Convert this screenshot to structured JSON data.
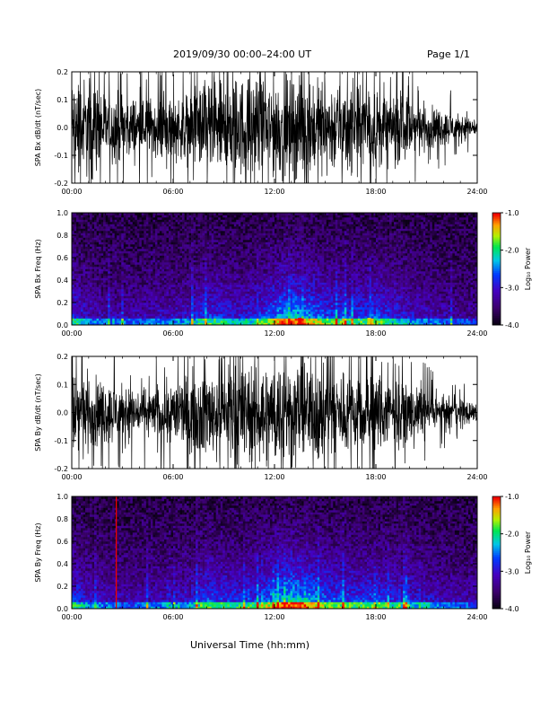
{
  "header": {
    "title": "2019/09/30  00:00–24:00 UT",
    "page": "Page 1/1"
  },
  "footer": {
    "xlabel": "Universal Time (hh:mm)"
  },
  "chart_data": [
    {
      "type": "line",
      "panel": "SPA Bx dB/dt",
      "ylabel": "SPA Bx dB/dt (nT/sec)",
      "xlabel": "",
      "x_unit": "hours UT",
      "xlim": [
        0,
        24
      ],
      "ylim": [
        -0.2,
        0.2
      ],
      "x_ticks": [
        "00:00",
        "06:00",
        "12:00",
        "18:00",
        "24:00"
      ],
      "y_ticks": [
        "-0.2",
        "-0.1",
        "0.0",
        "0.1",
        "0.2"
      ],
      "series": [
        {
          "x": [
            0,
            1,
            2,
            3,
            4,
            5,
            6,
            7,
            8,
            9,
            10,
            11,
            12,
            13,
            14,
            15,
            16,
            17,
            18,
            19,
            20,
            21,
            22,
            23,
            24
          ],
          "amplitude": [
            0.2,
            0.2,
            0.15,
            0.13,
            0.12,
            0.12,
            0.12,
            0.14,
            0.2,
            0.2,
            0.2,
            0.19,
            0.2,
            0.2,
            0.2,
            0.19,
            0.18,
            0.17,
            0.16,
            0.15,
            0.12,
            0.09,
            0.07,
            0.05,
            0.04
          ]
        }
      ],
      "grid": false
    },
    {
      "type": "heatmap",
      "panel": "SPA Bx Freq",
      "ylabel": "SPA Bx Freq (Hz)",
      "xlim": [
        0,
        24
      ],
      "ylim": [
        0.0,
        1.0
      ],
      "x_ticks": [
        "00:00",
        "06:00",
        "12:00",
        "18:00",
        "24:00"
      ],
      "y_ticks": [
        "0.0",
        "0.2",
        "0.4",
        "0.6",
        "0.8",
        "1.0"
      ],
      "colorbar": {
        "label": "Log₁₀ Power",
        "range": [
          -4.0,
          -1.0
        ],
        "ticks": [
          "-1.0",
          "-2.0",
          "-3.0",
          "-4.0"
        ]
      },
      "activity_by_hour": [
        0.55,
        0.35,
        0.3,
        0.3,
        0.3,
        0.35,
        0.35,
        0.4,
        0.55,
        0.5,
        0.45,
        0.5,
        0.7,
        0.85,
        0.75,
        0.6,
        0.55,
        0.55,
        0.6,
        0.5,
        0.4,
        0.35,
        0.3,
        0.25,
        0.25
      ],
      "hot_spots": [
        {
          "time": 13.5,
          "freq": 0.0,
          "value": -1.0
        },
        {
          "time": 17.6,
          "freq": 0.0,
          "value": -1.5
        }
      ]
    },
    {
      "type": "line",
      "panel": "SPA By dB/dt",
      "ylabel": "SPA By dB/dt (nT/sec)",
      "xlabel": "",
      "x_unit": "hours UT",
      "xlim": [
        0,
        24
      ],
      "ylim": [
        -0.2,
        0.2
      ],
      "x_ticks": [
        "00:00",
        "06:00",
        "12:00",
        "18:00",
        "24:00"
      ],
      "y_ticks": [
        "-0.2",
        "-0.1",
        "0.0",
        "0.1",
        "0.2"
      ],
      "series": [
        {
          "x": [
            0,
            1,
            2,
            3,
            4,
            5,
            6,
            7,
            8,
            9,
            10,
            11,
            12,
            13,
            14,
            15,
            16,
            17,
            18,
            19,
            20,
            21,
            22,
            23,
            24
          ],
          "amplitude": [
            0.2,
            0.15,
            0.12,
            0.11,
            0.1,
            0.1,
            0.13,
            0.15,
            0.18,
            0.19,
            0.2,
            0.2,
            0.2,
            0.2,
            0.2,
            0.19,
            0.17,
            0.16,
            0.15,
            0.13,
            0.1,
            0.08,
            0.06,
            0.05,
            0.04
          ]
        }
      ],
      "grid": false
    },
    {
      "type": "heatmap",
      "panel": "SPA By Freq",
      "ylabel": "SPA By Freq (Hz)",
      "xlim": [
        0,
        24
      ],
      "ylim": [
        0.0,
        1.0
      ],
      "x_ticks": [
        "00:00",
        "06:00",
        "12:00",
        "18:00",
        "24:00"
      ],
      "y_ticks": [
        "0.0",
        "0.2",
        "0.4",
        "0.6",
        "0.8",
        "1.0"
      ],
      "colorbar": {
        "label": "Log₁₀ Power",
        "range": [
          -4.0,
          -1.0
        ],
        "ticks": [
          "-1.0",
          "-2.0",
          "-3.0",
          "-4.0"
        ]
      },
      "activity_by_hour": [
        0.55,
        0.4,
        0.35,
        0.3,
        0.3,
        0.35,
        0.35,
        0.4,
        0.6,
        0.55,
        0.5,
        0.55,
        0.75,
        0.9,
        0.8,
        0.65,
        0.6,
        0.55,
        0.6,
        0.5,
        0.45,
        0.4,
        0.35,
        0.3,
        0.3
      ],
      "hot_spots": [
        {
          "time": 2.6,
          "freq": 0.5,
          "value": -1.0,
          "shape": "vertical line"
        }
      ]
    }
  ]
}
